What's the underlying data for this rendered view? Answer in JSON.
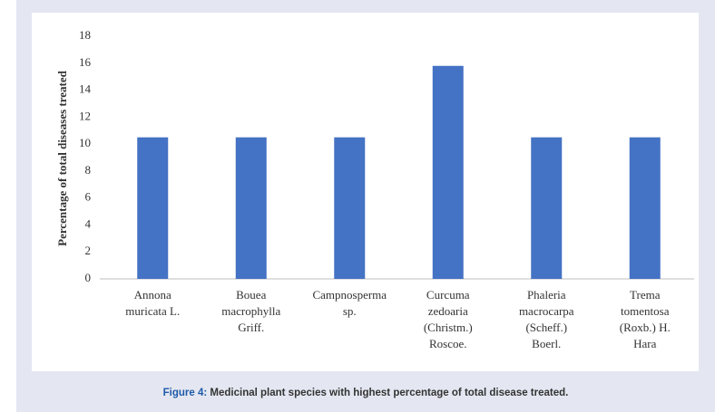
{
  "chart_data": {
    "type": "bar",
    "y_label": "Percentage of total diseases treated",
    "categories": [
      [
        "Annona",
        "muricata L."
      ],
      [
        "Bouea",
        "macrophylla",
        "Griff."
      ],
      [
        "Campnosperma",
        "sp."
      ],
      [
        "Curcuma",
        "zedoaria",
        "(Christm.)",
        "Roscoe."
      ],
      [
        "Phaleria",
        "macrocarpa",
        "(Scheff.)",
        "Boerl."
      ],
      [
        "Trema",
        "tomentosa",
        "(Roxb.) H.",
        "Hara"
      ]
    ],
    "values": [
      10.5,
      10.5,
      10.5,
      15.8,
      10.5,
      10.5
    ],
    "color": "#4472c4",
    "ylim": [
      0,
      18
    ],
    "yticks": [
      0,
      2,
      4,
      6,
      8,
      10,
      12,
      14,
      16,
      18
    ],
    "grid": false
  },
  "caption": {
    "label": "Figure 4:",
    "text": "Medicinal plant species with highest percentage of total disease treated."
  }
}
